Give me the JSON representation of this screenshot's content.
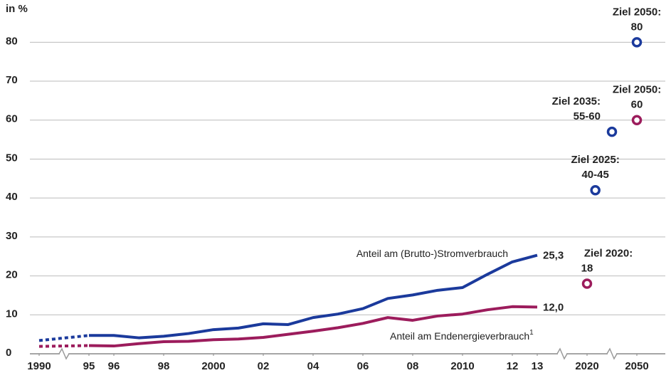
{
  "chart_data": {
    "type": "line",
    "y_unit_label": "in %",
    "ylim": [
      0,
      85
    ],
    "yticks": [
      0,
      10,
      20,
      30,
      40,
      50,
      60,
      70,
      80
    ],
    "grid": true,
    "xticks": [
      1990,
      {
        "value": 1995,
        "label": "95"
      },
      {
        "value": 1996,
        "label": "96"
      },
      {
        "value": 1998,
        "label": "98"
      },
      2000,
      {
        "value": 2002,
        "label": "02"
      },
      {
        "value": 2004,
        "label": "04"
      },
      {
        "value": 2006,
        "label": "06"
      },
      {
        "value": 2008,
        "label": "08"
      },
      2010,
      {
        "value": 2012,
        "label": "12"
      },
      {
        "value": 2013,
        "label": "13"
      },
      2020,
      2050
    ],
    "x": [
      1990,
      1995,
      1996,
      1997,
      1998,
      1999,
      2000,
      2001,
      2002,
      2003,
      2004,
      2005,
      2006,
      2007,
      2008,
      2009,
      2010,
      2011,
      2012,
      2013
    ],
    "series": [
      {
        "name": "Anteil am (Brutto-)Stromverbrauch",
        "color": "#1b3a9c",
        "values": [
          3.4,
          4.7,
          4.7,
          4.1,
          4.5,
          5.2,
          6.2,
          6.6,
          7.7,
          7.5,
          9.3,
          10.2,
          11.6,
          14.2,
          15.1,
          16.3,
          17.0,
          20.4,
          23.6,
          25.3
        ],
        "end_label": "25,3",
        "targets": [
          {
            "label": "Ziel 2025:",
            "x": 2025,
            "value": 42,
            "value_label": "40-45"
          },
          {
            "label": "Ziel 2035:",
            "x": 2035,
            "value": 57,
            "value_label": "55-60"
          },
          {
            "label": "Ziel 2050:",
            "x": 2050,
            "value": 80,
            "value_label": "80"
          }
        ]
      },
      {
        "name": "Anteil am Endenergieverbrauch",
        "name_sup": "1",
        "color": "#9c1c5c",
        "values": [
          1.9,
          2.1,
          2.0,
          2.6,
          3.1,
          3.2,
          3.6,
          3.8,
          4.2,
          5.0,
          5.8,
          6.7,
          7.8,
          9.3,
          8.6,
          9.7,
          10.2,
          11.3,
          12.1,
          12.0
        ],
        "end_label": "12,0",
        "targets": [
          {
            "label": "Ziel 2020:",
            "x": 2020,
            "value": 18,
            "value_label": "18"
          },
          {
            "label": "Ziel 2050:",
            "x": 2050,
            "value": 60,
            "value_label": "60"
          }
        ]
      }
    ]
  }
}
